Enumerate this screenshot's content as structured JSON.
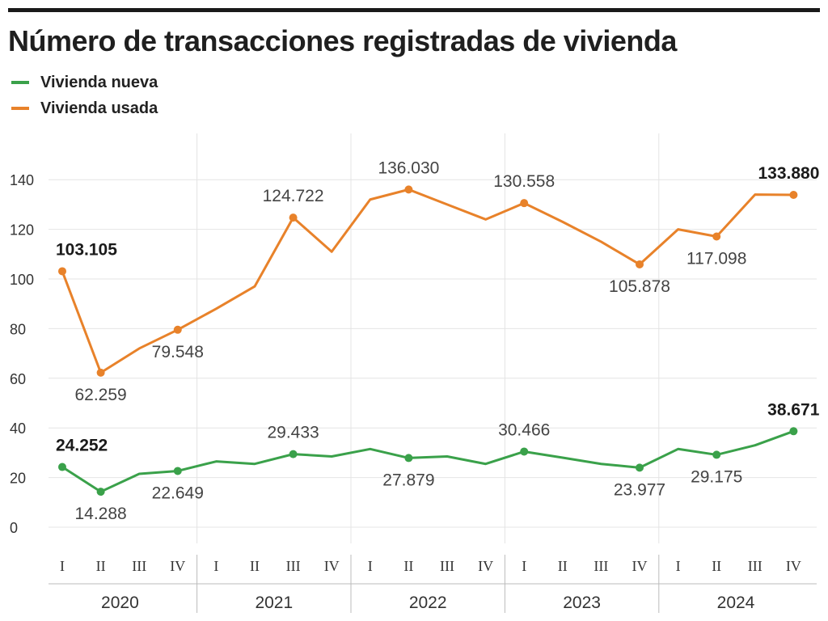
{
  "title": "Número de transacciones registradas de vivienda",
  "legend": {
    "new_label": "Vivienda nueva",
    "used_label": "Vivienda usada"
  },
  "colors": {
    "new": "#3aa14a",
    "used": "#e8822a",
    "grid": "#e4e4e4",
    "text": "#333333"
  },
  "chart_data": {
    "type": "line",
    "title": "Número de transacciones registradas de vivienda",
    "ylim": [
      0,
      150
    ],
    "yticks": [
      0,
      20,
      40,
      60,
      80,
      100,
      120,
      140
    ],
    "quarters": [
      "I",
      "II",
      "III",
      "IV",
      "I",
      "II",
      "III",
      "IV",
      "I",
      "II",
      "III",
      "IV",
      "I",
      "II",
      "III",
      "IV",
      "I",
      "II",
      "III",
      "IV"
    ],
    "years": [
      "2020",
      "2021",
      "2022",
      "2023",
      "2024"
    ],
    "series": [
      {
        "name": "Vivienda usada",
        "values": [
          103.105,
          62.259,
          72,
          79.548,
          88,
          97,
          124.722,
          111,
          132,
          136.03,
          130,
          124,
          130.558,
          123,
          115,
          105.878,
          120,
          117.098,
          134,
          133.88
        ],
        "labels": [
          {
            "i": 0,
            "text": "103.105",
            "pos": "above",
            "bold": true
          },
          {
            "i": 1,
            "text": "62.259",
            "pos": "below",
            "bold": false
          },
          {
            "i": 3,
            "text": "79.548",
            "pos": "below",
            "bold": false
          },
          {
            "i": 6,
            "text": "124.722",
            "pos": "above",
            "bold": false
          },
          {
            "i": 9,
            "text": "136.030",
            "pos": "above",
            "bold": false
          },
          {
            "i": 12,
            "text": "130.558",
            "pos": "above",
            "bold": false
          },
          {
            "i": 15,
            "text": "105.878",
            "pos": "below",
            "bold": false
          },
          {
            "i": 17,
            "text": "117.098",
            "pos": "below",
            "bold": false
          },
          {
            "i": 19,
            "text": "133.880",
            "pos": "above",
            "bold": true
          }
        ],
        "markers": [
          0,
          1,
          3,
          6,
          9,
          12,
          15,
          17,
          19
        ]
      },
      {
        "name": "Vivienda nueva",
        "values": [
          24.252,
          14.288,
          21.5,
          22.649,
          26.5,
          25.5,
          29.433,
          28.5,
          31.5,
          27.879,
          28.5,
          25.5,
          30.466,
          28,
          25.5,
          23.977,
          31.5,
          29.175,
          33,
          38.671
        ],
        "labels": [
          {
            "i": 0,
            "text": "24.252",
            "pos": "above",
            "bold": true
          },
          {
            "i": 1,
            "text": "14.288",
            "pos": "below",
            "bold": false
          },
          {
            "i": 3,
            "text": "22.649",
            "pos": "below",
            "bold": false
          },
          {
            "i": 6,
            "text": "29.433",
            "pos": "above",
            "bold": false
          },
          {
            "i": 9,
            "text": "27.879",
            "pos": "below",
            "bold": false
          },
          {
            "i": 12,
            "text": "30.466",
            "pos": "above",
            "bold": false
          },
          {
            "i": 15,
            "text": "23.977",
            "pos": "below",
            "bold": false
          },
          {
            "i": 17,
            "text": "29.175",
            "pos": "below",
            "bold": false
          },
          {
            "i": 19,
            "text": "38.671",
            "pos": "above",
            "bold": true
          }
        ],
        "markers": [
          0,
          1,
          3,
          6,
          9,
          12,
          15,
          17,
          19
        ]
      }
    ]
  }
}
